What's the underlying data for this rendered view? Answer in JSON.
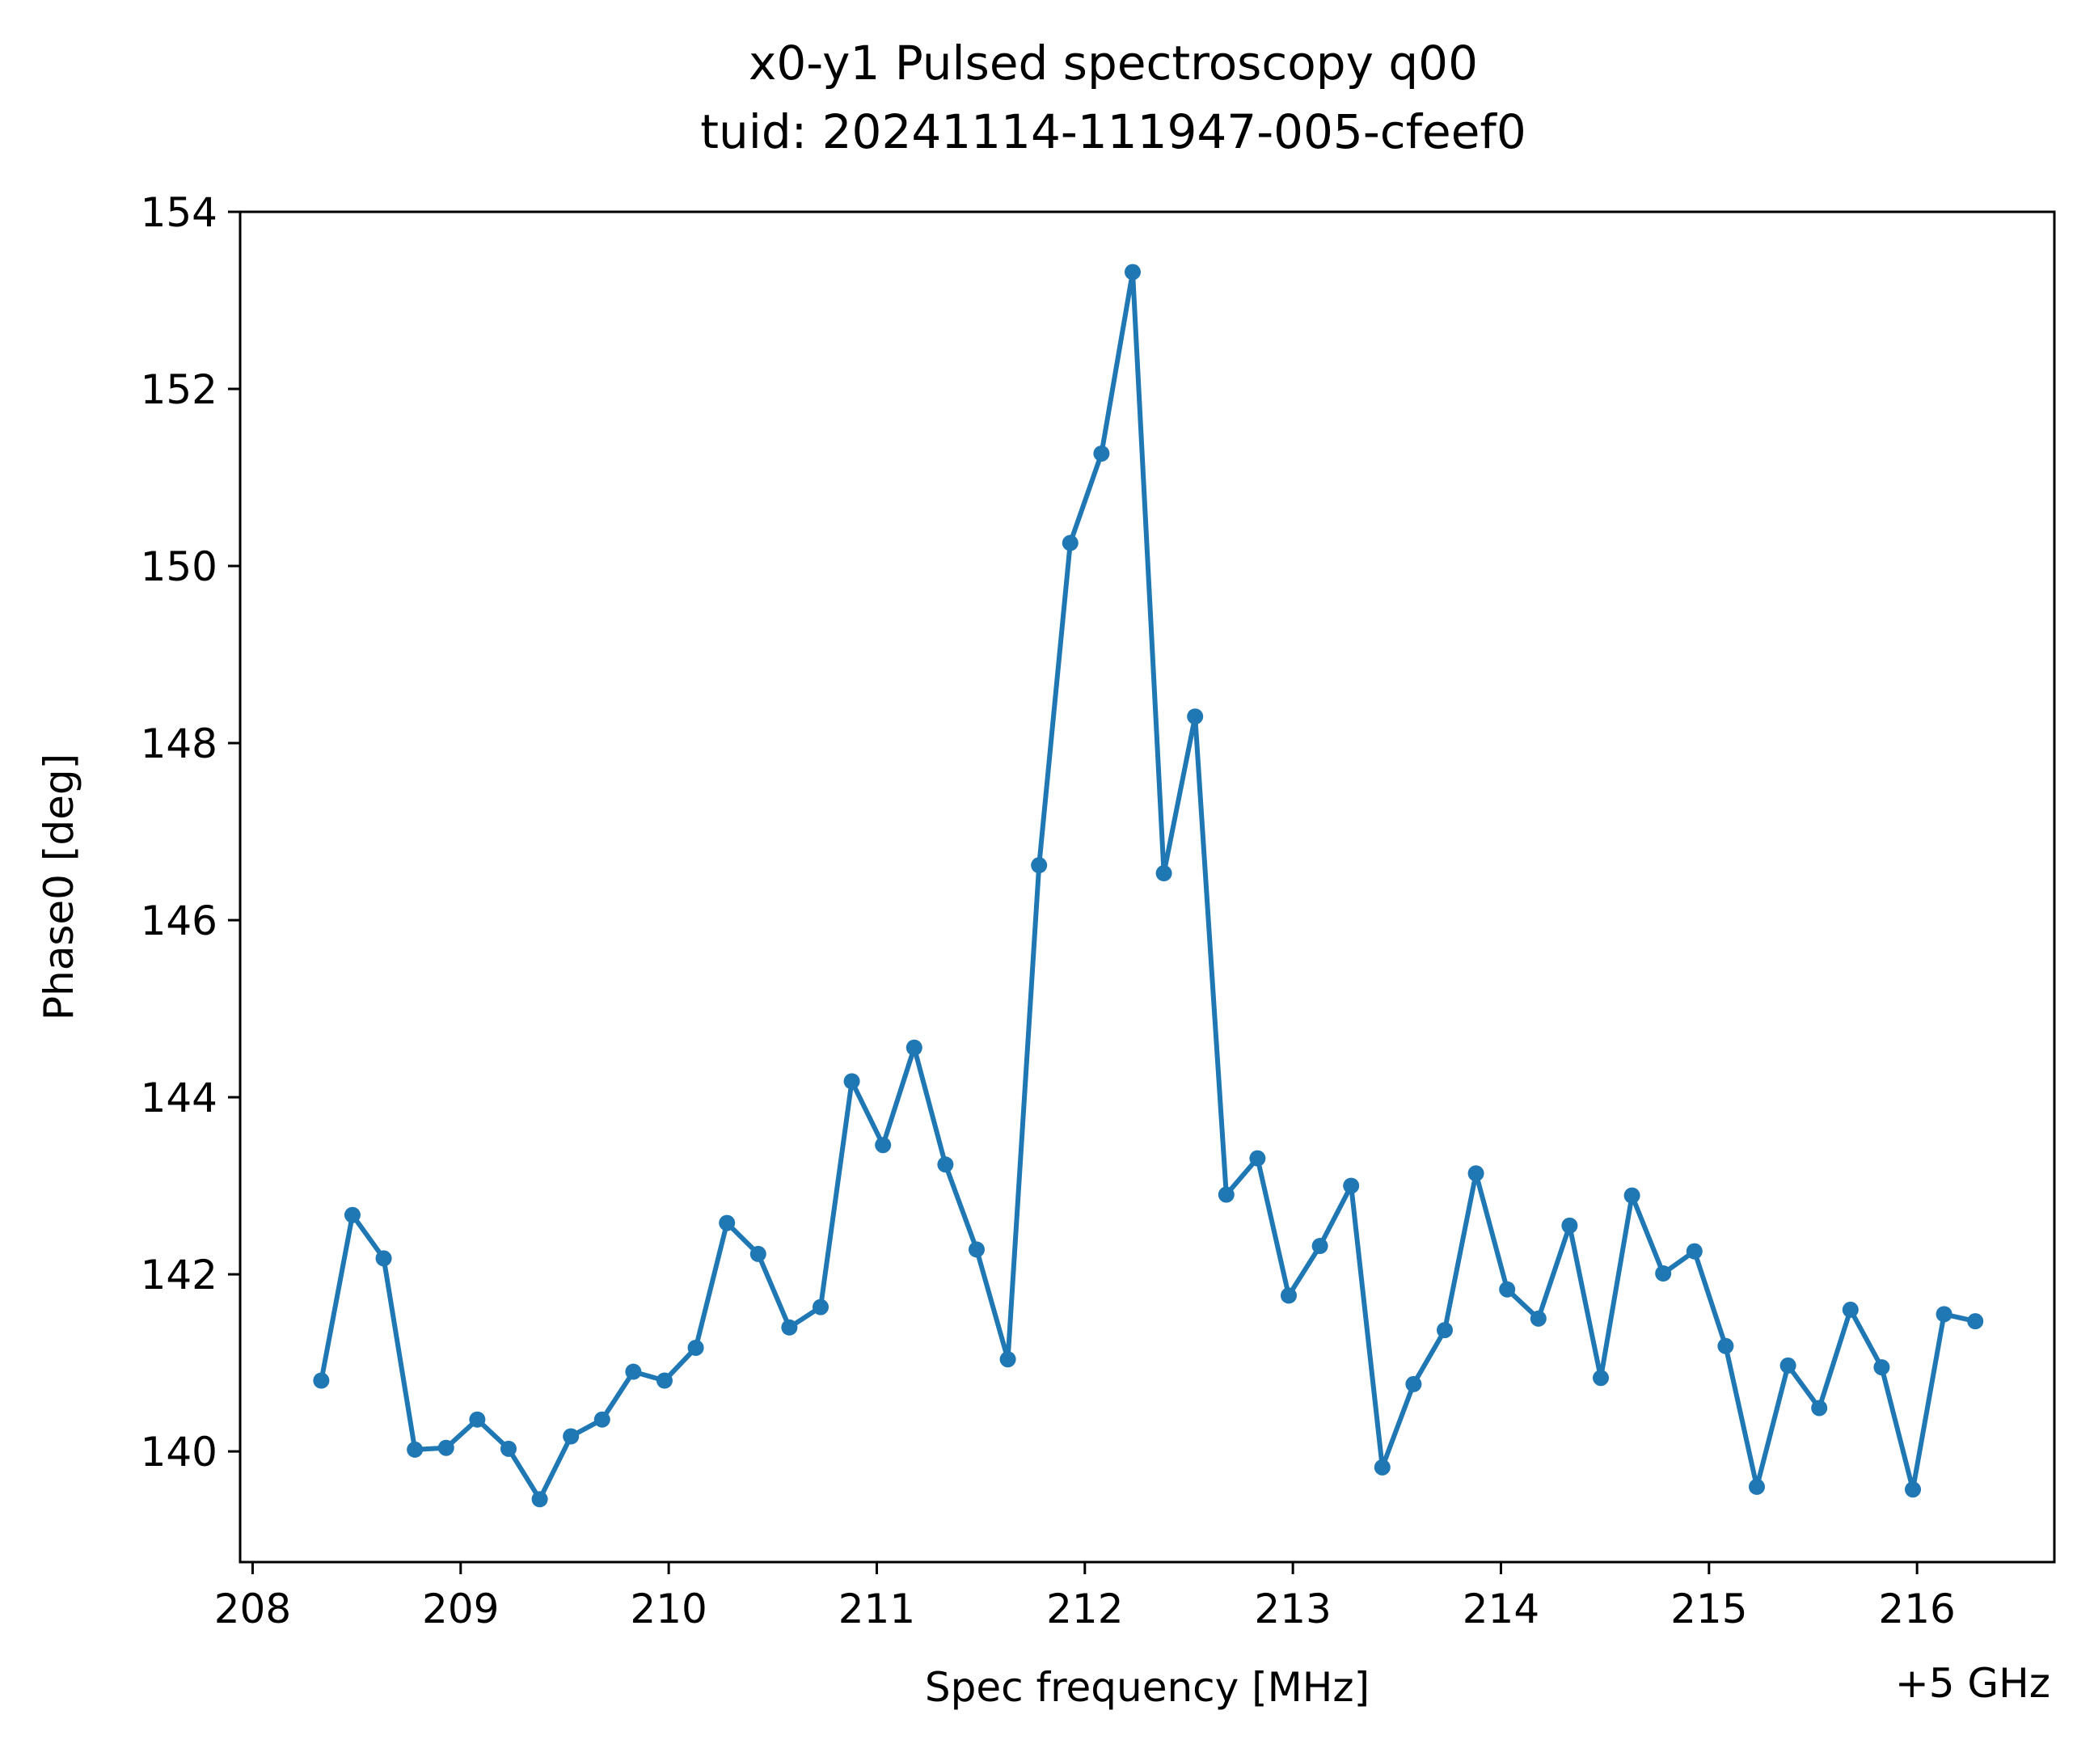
{
  "chart_data": {
    "type": "line",
    "title": "x0-y1 Pulsed spectroscopy q00",
    "subtitle": "tuid: 20241114-111947-005-cfeef0",
    "xlabel": "Spec frequency [MHz]",
    "ylabel": "Phase0 [deg]",
    "x_offset_label": "+5 GHz",
    "xlim": [
      207.94,
      216.66
    ],
    "ylim": [
      138.75,
      154.0
    ],
    "xticks": [
      208,
      209,
      210,
      211,
      212,
      213,
      214,
      215,
      216
    ],
    "yticks": [
      140,
      142,
      144,
      146,
      148,
      150,
      152,
      154
    ],
    "grid": false,
    "color": "#1f77b4",
    "series": [
      {
        "x": [
          208.33,
          208.48,
          208.63,
          208.78,
          208.93,
          209.08,
          209.23,
          209.38,
          209.53,
          209.68,
          209.83,
          209.98,
          210.13,
          210.28,
          210.43,
          210.58,
          210.73,
          210.88,
          211.03,
          211.18,
          211.33,
          211.48,
          211.63,
          211.78,
          211.93,
          212.08,
          212.23,
          212.38,
          212.53,
          212.68,
          212.83,
          212.98,
          213.13,
          213.28,
          213.43,
          213.58,
          213.73,
          213.88,
          214.03,
          214.18,
          214.33,
          214.48,
          214.63,
          214.78,
          214.93,
          215.08,
          215.23,
          215.38,
          215.53,
          215.68,
          215.83,
          215.98,
          216.13,
          216.28
        ],
        "y": [
          140.8,
          142.67,
          142.18,
          140.02,
          140.04,
          140.36,
          140.03,
          139.46,
          140.17,
          140.36,
          140.9,
          140.8,
          141.17,
          142.58,
          142.23,
          141.4,
          141.63,
          144.18,
          143.46,
          144.56,
          143.24,
          142.28,
          141.04,
          146.62,
          150.26,
          151.27,
          153.32,
          146.53,
          148.3,
          142.9,
          143.31,
          141.76,
          142.32,
          143.0,
          139.82,
          140.76,
          141.37,
          143.14,
          141.83,
          141.5,
          142.55,
          140.83,
          142.89,
          142.01,
          142.26,
          141.19,
          139.6,
          140.97,
          140.49,
          141.6,
          140.95,
          139.57,
          141.55,
          141.47
        ]
      }
    ]
  }
}
